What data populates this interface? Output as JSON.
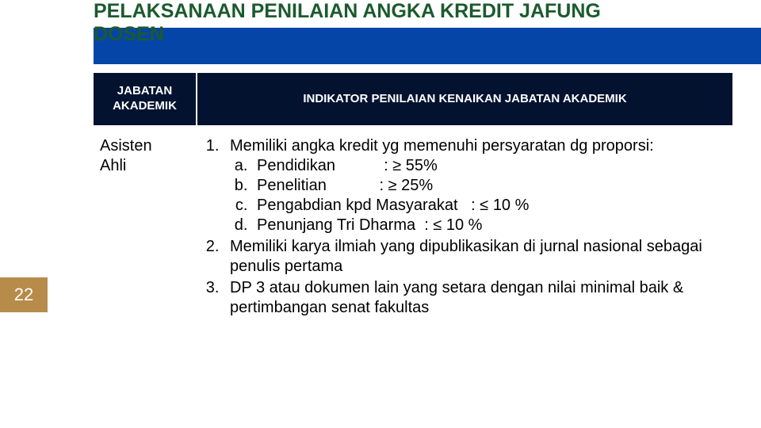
{
  "slide": {
    "title_line1": "PELAKSANAAN PENILAIAN ANGKA KREDIT JAFUNG",
    "title_line2": "DOSEN",
    "title_color": "#1c5a2e",
    "title_fontsize": 25,
    "banner_color": "#0645a8",
    "page_number": "22",
    "page_box_bg": "#b78b4a",
    "page_box_color": "#ffffff",
    "page_fontsize": 22,
    "background": "#ffffff"
  },
  "table": {
    "header_bg": "#03122f",
    "header_color": "#ffffff",
    "header_fontsize": 15,
    "body_fontsize": 20,
    "body_color": "#000000",
    "col1_header_line1": "JABATAN",
    "col1_header_line2": "AKADEMIK",
    "col2_header": "INDIKATOR PENILAIAN KENAIKAN JABATAN AKADEMIK",
    "row": {
      "col1_line1": "Asisten",
      "col1_line2": "Ahli",
      "item1_lead": "Memiliki angka kredit  yg memenuhi persyaratan dg proporsi:",
      "sub_a": "Pendidikan           : ≥ 55%",
      "sub_b": "Penelitian            : ≥ 25%",
      "sub_c": "Pengabdian kpd Masyarakat   : ≤ 10 %",
      "sub_d": "Penunjang Tri Dharma  : ≤ 10 %",
      "item2": "Memiliki karya ilmiah yang dipublikasikan di jurnal nasional sebagai penulis pertama",
      "item3": "DP 3 atau dokumen lain yang setara dengan nilai minimal baik & pertimbangan senat fakultas"
    }
  }
}
